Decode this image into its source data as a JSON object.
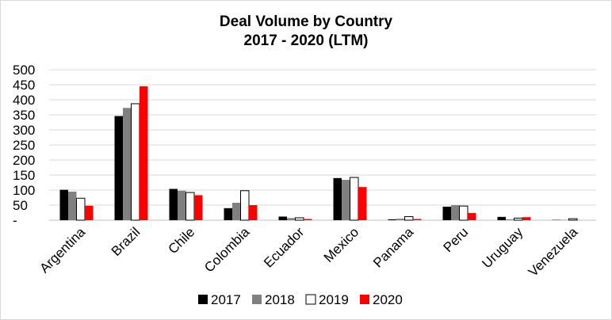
{
  "chart_data": {
    "type": "bar",
    "title": "Deal Volume by Country",
    "subtitle": "2017 - 2020 (LTM)",
    "xlabel": "",
    "ylabel": "",
    "ylim": [
      0,
      500
    ],
    "yticks": [
      "-",
      "50",
      "100",
      "150",
      "200",
      "250",
      "300",
      "350",
      "400",
      "450",
      "500"
    ],
    "grid": true,
    "legend_position": "bottom",
    "categories": [
      "Argentina",
      "Brazil",
      "Chile",
      "Colombia",
      "Ecuador",
      "Mexico",
      "Panama",
      "Peru",
      "Uruguay",
      "Venezuela"
    ],
    "series": [
      {
        "name": "2017",
        "color": "#000000",
        "values": [
          101,
          346,
          104,
          40,
          12,
          140,
          3,
          45,
          11,
          1
        ]
      },
      {
        "name": "2018",
        "color": "#808080",
        "values": [
          95,
          373,
          98,
          58,
          7,
          134,
          5,
          50,
          3,
          1
        ]
      },
      {
        "name": "2019",
        "color": "#ffffff",
        "values": [
          73,
          387,
          92,
          98,
          8,
          142,
          12,
          47,
          7,
          5
        ]
      },
      {
        "name": "2020",
        "color": "#ff0000",
        "values": [
          48,
          445,
          83,
          50,
          4,
          110,
          4,
          24,
          10,
          0
        ]
      }
    ]
  }
}
